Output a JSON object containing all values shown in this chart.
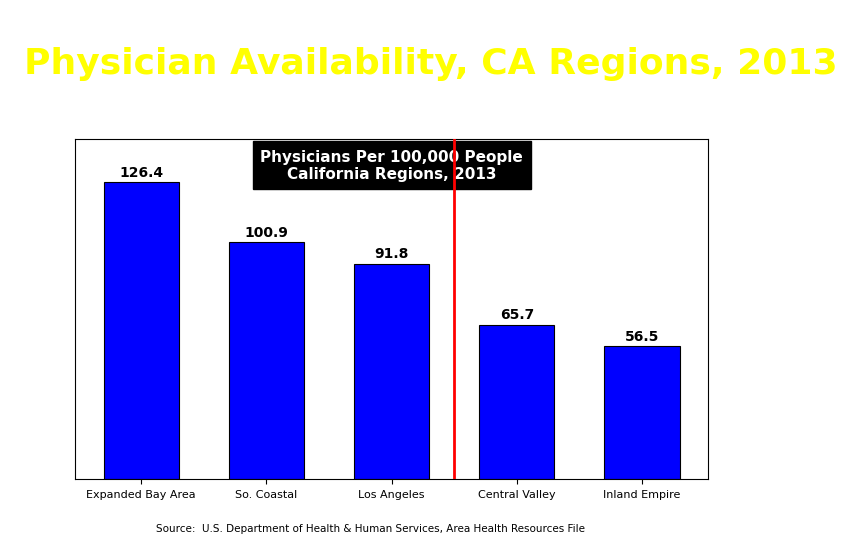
{
  "title": "Physician Availability, CA Regions, 2013",
  "title_color": "#FFFF00",
  "title_bg_color": "#0000FF",
  "title_fontsize": 26,
  "chart_title_line1": "Physicians Per 100,000 People",
  "chart_title_line2": "California Regions, 2013",
  "chart_title_fontsize": 11,
  "categories": [
    "Expanded Bay Area",
    "So. Coastal",
    "Los Angeles",
    "Central Valley",
    "Inland Empire"
  ],
  "values": [
    126.4,
    100.9,
    91.8,
    65.7,
    56.5
  ],
  "bar_color": "#0000FF",
  "bar_edgecolor": "#000000",
  "value_labels": [
    "126.4",
    "100.9",
    "91.8",
    "65.7",
    "56.5"
  ],
  "source_text": "Source:  U.S. Department of Health & Human Services, Area Health Resources File",
  "source_fontsize": 7.5,
  "ylim": [
    0,
    145
  ],
  "bg_color": "#FFFFFF",
  "value_label_fontsize": 10,
  "tick_label_fontsize": 8
}
